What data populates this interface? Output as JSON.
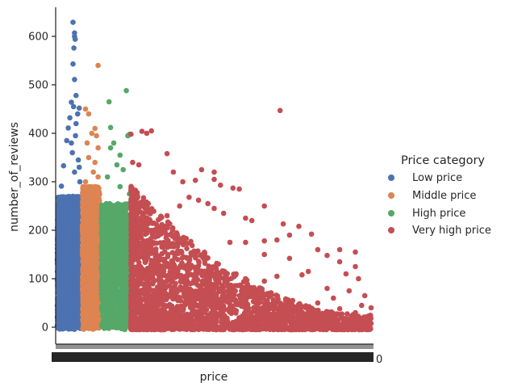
{
  "chart_data": {
    "type": "scatter",
    "title": "",
    "xlabel": "price",
    "ylabel": "number_of_reviews",
    "ylim": [
      -35,
      660
    ],
    "yticks": [
      0,
      100,
      200,
      300,
      400,
      500,
      600
    ],
    "x_tick_labels_note": "dense overlapping categorical price ticks (illegible); last visible character 0",
    "x_tick_tail": "0",
    "grid": false,
    "legend_placement": "right",
    "legend": {
      "title": "Price category",
      "entries": [
        {
          "label": "Low price",
          "color": "#4c72b0"
        },
        {
          "label": "Middle price",
          "color": "#dd8452"
        },
        {
          "label": "High price",
          "color": "#55a868"
        },
        {
          "label": "Very high price",
          "color": "#c44e52"
        }
      ]
    },
    "series": [
      {
        "name": "Low price",
        "color": "#4c72b0",
        "x_range": [
          0,
          0.075
        ],
        "density_max": 270,
        "points": [
          [
            0.05,
            629
          ],
          [
            0.055,
            607
          ],
          [
            0.055,
            600
          ],
          [
            0.057,
            594
          ],
          [
            0.053,
            576
          ],
          [
            0.05,
            543
          ],
          [
            0.055,
            511
          ],
          [
            0.06,
            478
          ],
          [
            0.045,
            464
          ],
          [
            0.052,
            455
          ],
          [
            0.07,
            452
          ],
          [
            0.065,
            440
          ],
          [
            0.04,
            432
          ],
          [
            0.035,
            411
          ],
          [
            0.03,
            385
          ],
          [
            0.02,
            333
          ],
          [
            0.013,
            291
          ],
          [
            0.06,
            420
          ],
          [
            0.058,
            395
          ],
          [
            0.045,
            380
          ],
          [
            0.048,
            360
          ],
          [
            0.067,
            345
          ],
          [
            0.07,
            330
          ],
          [
            0.055,
            320
          ],
          [
            0.072,
            300
          ]
        ]
      },
      {
        "name": "Middle price",
        "color": "#dd8452",
        "x_range": [
          0.08,
          0.135
        ],
        "density_max": 290,
        "points": [
          [
            0.13,
            540
          ],
          [
            0.09,
            450
          ],
          [
            0.1,
            440
          ],
          [
            0.12,
            410
          ],
          [
            0.11,
            400
          ],
          [
            0.125,
            395
          ],
          [
            0.095,
            380
          ],
          [
            0.13,
            370
          ],
          [
            0.1,
            350
          ],
          [
            0.12,
            340
          ],
          [
            0.115,
            320
          ],
          [
            0.13,
            310
          ],
          [
            0.09,
            300
          ]
        ]
      },
      {
        "name": "High price",
        "color": "#55a868",
        "x_range": [
          0.14,
          0.23
        ],
        "density_max": 255,
        "points": [
          [
            0.22,
            488
          ],
          [
            0.165,
            465
          ],
          [
            0.17,
            412
          ],
          [
            0.23,
            398
          ],
          [
            0.225,
            395
          ],
          [
            0.18,
            380
          ],
          [
            0.17,
            370
          ],
          [
            0.2,
            355
          ],
          [
            0.19,
            335
          ],
          [
            0.21,
            325
          ],
          [
            0.16,
            310
          ],
          [
            0.2,
            290
          ],
          [
            0.23,
            275
          ]
        ]
      },
      {
        "name": "Very high price",
        "color": "#c44e52",
        "x_range": [
          0.235,
          1.0
        ],
        "points": [
          [
            0.71,
            447
          ],
          [
            0.27,
            404
          ],
          [
            0.285,
            400
          ],
          [
            0.3,
            405
          ],
          [
            0.235,
            398
          ],
          [
            0.35,
            358
          ],
          [
            0.24,
            340
          ],
          [
            0.26,
            335
          ],
          [
            0.37,
            320
          ],
          [
            0.46,
            325
          ],
          [
            0.5,
            320
          ],
          [
            0.5,
            305
          ],
          [
            0.44,
            303
          ],
          [
            0.4,
            300
          ],
          [
            0.52,
            293
          ],
          [
            0.56,
            287
          ],
          [
            0.58,
            285
          ],
          [
            0.66,
            250
          ],
          [
            0.42,
            268
          ],
          [
            0.45,
            262
          ],
          [
            0.48,
            255
          ],
          [
            0.39,
            250
          ],
          [
            0.5,
            245
          ],
          [
            0.53,
            235
          ],
          [
            0.35,
            230
          ],
          [
            0.6,
            225
          ],
          [
            0.62,
            220
          ],
          [
            0.72,
            213
          ],
          [
            0.77,
            208
          ],
          [
            0.81,
            192
          ],
          [
            0.74,
            190
          ],
          [
            0.7,
            180
          ],
          [
            0.66,
            178
          ],
          [
            0.6,
            175
          ],
          [
            0.55,
            175
          ],
          [
            0.83,
            160
          ],
          [
            0.9,
            160
          ],
          [
            0.95,
            155
          ],
          [
            0.86,
            148
          ],
          [
            0.66,
            150
          ],
          [
            0.74,
            142
          ],
          [
            0.9,
            135
          ],
          [
            0.95,
            125
          ],
          [
            0.8,
            115
          ],
          [
            0.78,
            108
          ],
          [
            0.92,
            110
          ],
          [
            0.7,
            105
          ],
          [
            0.96,
            100
          ],
          [
            0.66,
            95
          ],
          [
            0.6,
            100
          ],
          [
            0.57,
            110
          ],
          [
            0.86,
            80
          ],
          [
            0.93,
            75
          ],
          [
            0.98,
            65
          ],
          [
            0.88,
            60
          ],
          [
            0.75,
            55
          ],
          [
            0.83,
            50
          ],
          [
            0.97,
            45
          ],
          [
            1.0,
            40
          ],
          [
            0.9,
            38
          ],
          [
            0.95,
            30
          ],
          [
            0.99,
            20
          ],
          [
            0.93,
            15
          ],
          [
            0.97,
            10
          ],
          [
            1.0,
            8
          ],
          [
            0.9,
            5
          ]
        ]
      }
    ]
  }
}
